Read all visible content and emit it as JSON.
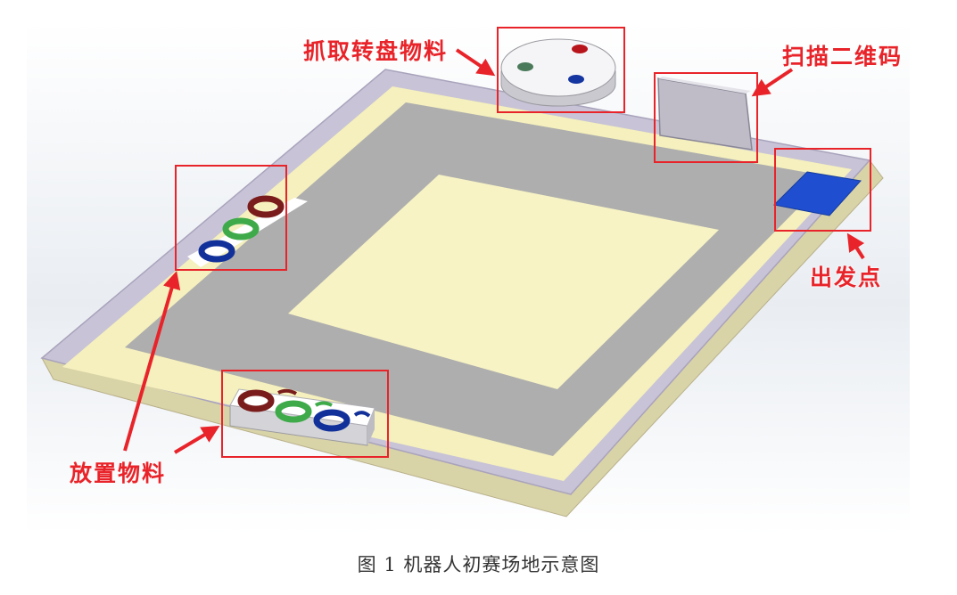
{
  "annotations": {
    "turntable": "抓取转盘物料",
    "qrcode": "扫描二维码",
    "start": "出发点",
    "place": "放置物料"
  },
  "caption": "图 1  机器人初赛场地示意图",
  "colors": {
    "annotation": "#e8242a",
    "board_outer_yellow": "#f6f1be",
    "board_gray": "#aeaeae",
    "inner_yellow": "#f7f3c4",
    "start_zone": "#1f4fd0",
    "ring_red": "#7a1c1c",
    "ring_green": "#3faa4a",
    "ring_blue": "#12309a"
  }
}
